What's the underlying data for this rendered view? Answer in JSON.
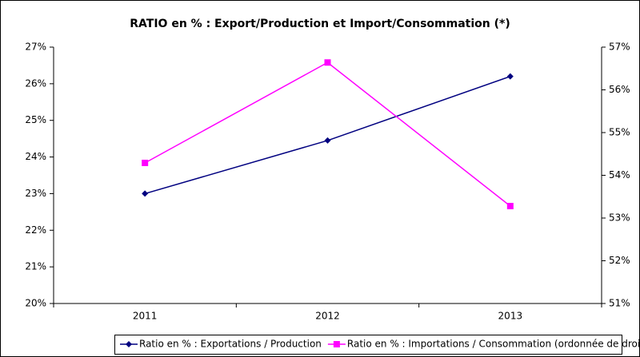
{
  "chart_data": {
    "type": "line",
    "title": "RATIO en % : Export/Production et Import/Consommation (*)",
    "categories": [
      "2011",
      "2012",
      "2013"
    ],
    "series": [
      {
        "name": "Ratio en % : Exportations / Production",
        "color": "#000080",
        "marker": "diamond",
        "values": [
          23.0,
          24.45,
          26.2
        ]
      },
      {
        "name": "Ratio en % : Importations / Consommation (ordonnée de droite)",
        "color": "#ff00ff",
        "marker": "square",
        "axis": "y2",
        "values": [
          54.29,
          56.64,
          53.28
        ]
      }
    ],
    "ylim": [
      20,
      27
    ],
    "yticks": [
      {
        "value": 20,
        "label": "20%"
      },
      {
        "value": 21,
        "label": "21%"
      },
      {
        "value": 22,
        "label": "22%"
      },
      {
        "value": 23,
        "label": "23%"
      },
      {
        "value": 24,
        "label": "24%"
      },
      {
        "value": 25,
        "label": "25%"
      },
      {
        "value": 26,
        "label": "26%"
      },
      {
        "value": 27,
        "label": "27%"
      }
    ],
    "y2lim": [
      51,
      57
    ],
    "y2ticks": [
      {
        "value": 51,
        "label": "51%"
      },
      {
        "value": 52,
        "label": "52%"
      },
      {
        "value": 53,
        "label": "53%"
      },
      {
        "value": 54,
        "label": "54%"
      },
      {
        "value": 55,
        "label": "55%"
      },
      {
        "value": 56,
        "label": "56%"
      },
      {
        "value": 57,
        "label": "57%"
      }
    ],
    "grid": false,
    "legend": "bottom"
  }
}
